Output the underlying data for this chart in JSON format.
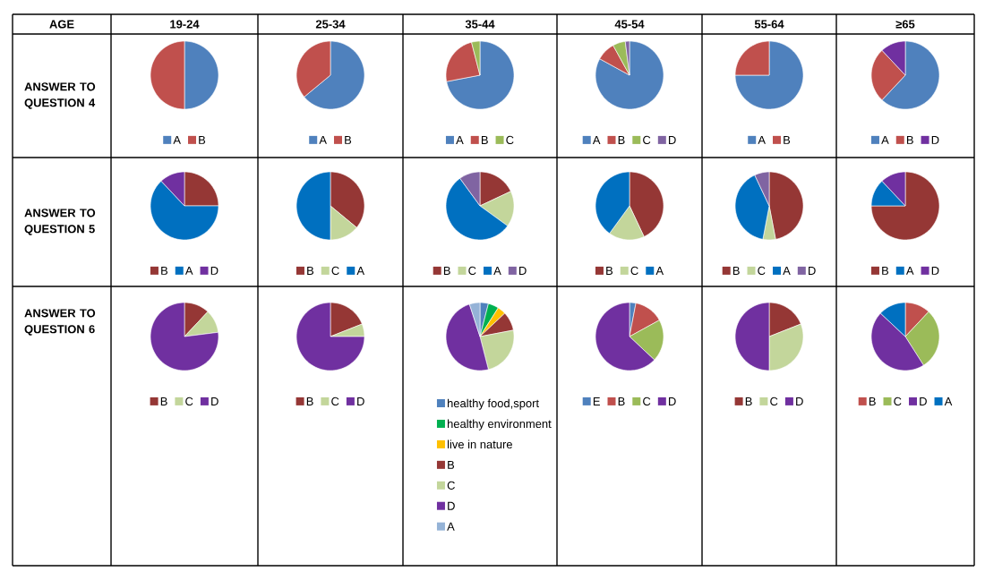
{
  "chart_data": [
    {
      "type": "other",
      "annotations": [
        "AGE",
        "19-24",
        "25-34",
        "35-44",
        "45-54",
        "55-64",
        "≥65",
        "ANSWER TO QUESTION 4",
        "ANSWER TO QUESTION 5",
        "ANSWER TO QUESTION 6"
      ]
    },
    {
      "type": "pie",
      "categories": [
        "A",
        "B"
      ],
      "values": [
        50,
        50
      ],
      "colors": [
        "#4f81bd",
        "#c0504d"
      ],
      "legend": "bottom"
    },
    {
      "type": "pie",
      "categories": [
        "A",
        "B"
      ],
      "values": [
        64,
        36
      ],
      "colors": [
        "#4f81bd",
        "#c0504d"
      ],
      "legend": "bottom"
    },
    {
      "type": "pie",
      "categories": [
        "A",
        "B",
        "C"
      ],
      "values": [
        72,
        24,
        4
      ],
      "colors": [
        "#4f81bd",
        "#c0504d",
        "#9bbb59"
      ],
      "legend": "bottom"
    },
    {
      "type": "pie",
      "categories": [
        "A",
        "B",
        "C",
        "D"
      ],
      "values": [
        83,
        9,
        6,
        2
      ],
      "colors": [
        "#4f81bd",
        "#c0504d",
        "#9bbb59",
        "#8064a2"
      ],
      "legend": "bottom"
    },
    {
      "type": "pie",
      "categories": [
        "A",
        "B"
      ],
      "values": [
        75,
        25
      ],
      "colors": [
        "#4f81bd",
        "#c0504d"
      ],
      "legend": "bottom"
    },
    {
      "type": "pie",
      "categories": [
        "A",
        "B",
        "D"
      ],
      "values": [
        62,
        26,
        12
      ],
      "colors": [
        "#4f81bd",
        "#c0504d",
        "#7030a0"
      ],
      "legend": "bottom"
    },
    {
      "type": "pie",
      "categories": [
        "B",
        "A",
        "D"
      ],
      "values": [
        25,
        63,
        12
      ],
      "colors": [
        "#953735",
        "#0070c0",
        "#7030a0"
      ],
      "legend": "bottom"
    },
    {
      "type": "pie",
      "categories": [
        "B",
        "C",
        "A"
      ],
      "values": [
        36,
        14,
        50
      ],
      "colors": [
        "#953735",
        "#c3d69b",
        "#0070c0"
      ],
      "legend": "bottom"
    },
    {
      "type": "pie",
      "categories": [
        "B",
        "C",
        "A",
        "D"
      ],
      "values": [
        18,
        17,
        55,
        10
      ],
      "colors": [
        "#953735",
        "#c3d69b",
        "#0070c0",
        "#8064a2"
      ],
      "legend": "bottom"
    },
    {
      "type": "pie",
      "categories": [
        "B",
        "C",
        "A"
      ],
      "values": [
        43,
        17,
        40
      ],
      "colors": [
        "#953735",
        "#c3d69b",
        "#0070c0"
      ],
      "legend": "bottom"
    },
    {
      "type": "pie",
      "categories": [
        "B",
        "C",
        "A",
        "D"
      ],
      "values": [
        47,
        6,
        40,
        7
      ],
      "colors": [
        "#953735",
        "#c3d69b",
        "#0070c0",
        "#8064a2"
      ],
      "legend": "bottom"
    },
    {
      "type": "pie",
      "categories": [
        "B",
        "A",
        "D"
      ],
      "values": [
        75,
        13,
        12
      ],
      "colors": [
        "#953735",
        "#0070c0",
        "#7030a0"
      ],
      "legend": "bottom"
    },
    {
      "type": "pie",
      "categories": [
        "B",
        "C",
        "D"
      ],
      "values": [
        12,
        11,
        77
      ],
      "colors": [
        "#953735",
        "#c3d69b",
        "#7030a0"
      ],
      "legend": "bottom"
    },
    {
      "type": "pie",
      "categories": [
        "B",
        "C",
        "D"
      ],
      "values": [
        19,
        6,
        75
      ],
      "colors": [
        "#953735",
        "#c3d69b",
        "#7030a0"
      ],
      "legend": "bottom"
    },
    {
      "type": "pie",
      "categories": [
        "healthy food,sport",
        "healthy environment",
        "live in nature",
        "B",
        "C",
        "D",
        "A"
      ],
      "values": [
        4,
        5,
        4,
        9,
        24,
        49,
        5
      ],
      "colors": [
        "#4f81bd",
        "#00b050",
        "#ffc000",
        "#953735",
        "#c3d69b",
        "#7030a0",
        "#95b3d7"
      ],
      "legend": "bottom"
    },
    {
      "type": "pie",
      "categories": [
        "E",
        "B",
        "C",
        "D"
      ],
      "values": [
        3,
        14,
        20,
        63
      ],
      "colors": [
        "#4f81bd",
        "#c0504d",
        "#9bbb59",
        "#7030a0"
      ],
      "legend": "bottom"
    },
    {
      "type": "pie",
      "categories": [
        "B",
        "C",
        "D"
      ],
      "values": [
        19,
        31,
        50
      ],
      "colors": [
        "#953735",
        "#c3d69b",
        "#7030a0"
      ],
      "legend": "bottom"
    },
    {
      "type": "pie",
      "categories": [
        "B",
        "C",
        "D",
        "A"
      ],
      "values": [
        12,
        29,
        46,
        13
      ],
      "colors": [
        "#c0504d",
        "#9bbb59",
        "#7030a0",
        "#0070c0"
      ],
      "legend": "bottom"
    }
  ]
}
